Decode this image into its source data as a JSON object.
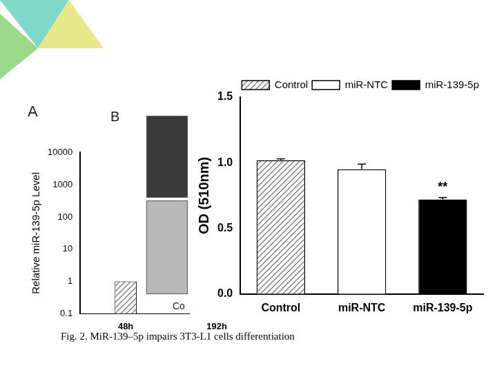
{
  "chart_data": [
    {
      "type": "bar",
      "title": "A",
      "y_label": "Relative miR-139-5p Level",
      "categories": [
        "48h",
        "192h"
      ],
      "values": [
        1,
        null
      ],
      "color": "#808080",
      "log": "y",
      "ylim": [
        0.1,
        10000
      ],
      "yticks": [
        0.1,
        1,
        10,
        100,
        1000,
        10000
      ],
      "grid": false
    },
    {
      "type": "bar",
      "y_label": "OD (510nm)",
      "categories": [
        "Control",
        "miR-NTC",
        "miR-139-5p"
      ],
      "series": [
        {
          "name": "Control",
          "color": "#808080",
          "values": [
            1.02,
            null,
            null
          ],
          "errors": [
            0.01,
            null,
            null
          ]
        },
        {
          "name": "miR-NTC",
          "color": "#ffffff",
          "values": [
            null,
            0.95,
            null
          ],
          "errors": [
            null,
            0.04,
            null
          ]
        },
        {
          "name": "miR-139-5p",
          "color": "#000000",
          "values": [
            null,
            null,
            0.72
          ],
          "errors": [
            null,
            null,
            0.015
          ]
        }
      ],
      "ylim": [
        0,
        1.5
      ],
      "yticks": [
        {
          "value": 0,
          "label": "0.0"
        },
        {
          "value": 0.5,
          "label": "0.5"
        },
        {
          "value": 1,
          "label": "1.0"
        },
        {
          "value": 1.5,
          "label": "1.5"
        }
      ],
      "grid": false,
      "legend": "upper right",
      "annotations": [
        {
          "category": "miR-139-5p",
          "text": "**"
        }
      ]
    }
  ],
  "panel_b": {
    "label": "B",
    "text": "Co"
  },
  "caption": "Fig. 2. MiR-139–5p impairs 3T3-L1 cells differentiation"
}
